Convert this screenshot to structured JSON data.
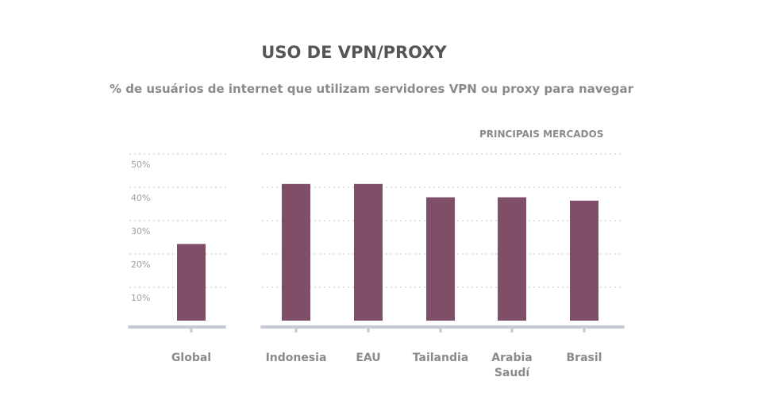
{
  "chart_data": {
    "type": "bar",
    "title": "USO DE VPN/PROXY",
    "subtitle": "% de usuários de internet que utilizam servidores VPN ou proxy para navegar",
    "group_label": "PRINCIPAIS MERCADOS",
    "categories": [
      "Global",
      "Indonesia",
      "EAU",
      "Tailandia",
      "Arabia Saudí",
      "Brasil"
    ],
    "values": [
      23,
      41,
      41,
      37,
      37,
      36
    ],
    "ylim": [
      0,
      50
    ],
    "yticks": [
      "10%",
      "20%",
      "30%",
      "40%",
      "50%"
    ],
    "grid": true,
    "bar_color": "#7f4f67",
    "axis_color": "#c5cad4"
  }
}
